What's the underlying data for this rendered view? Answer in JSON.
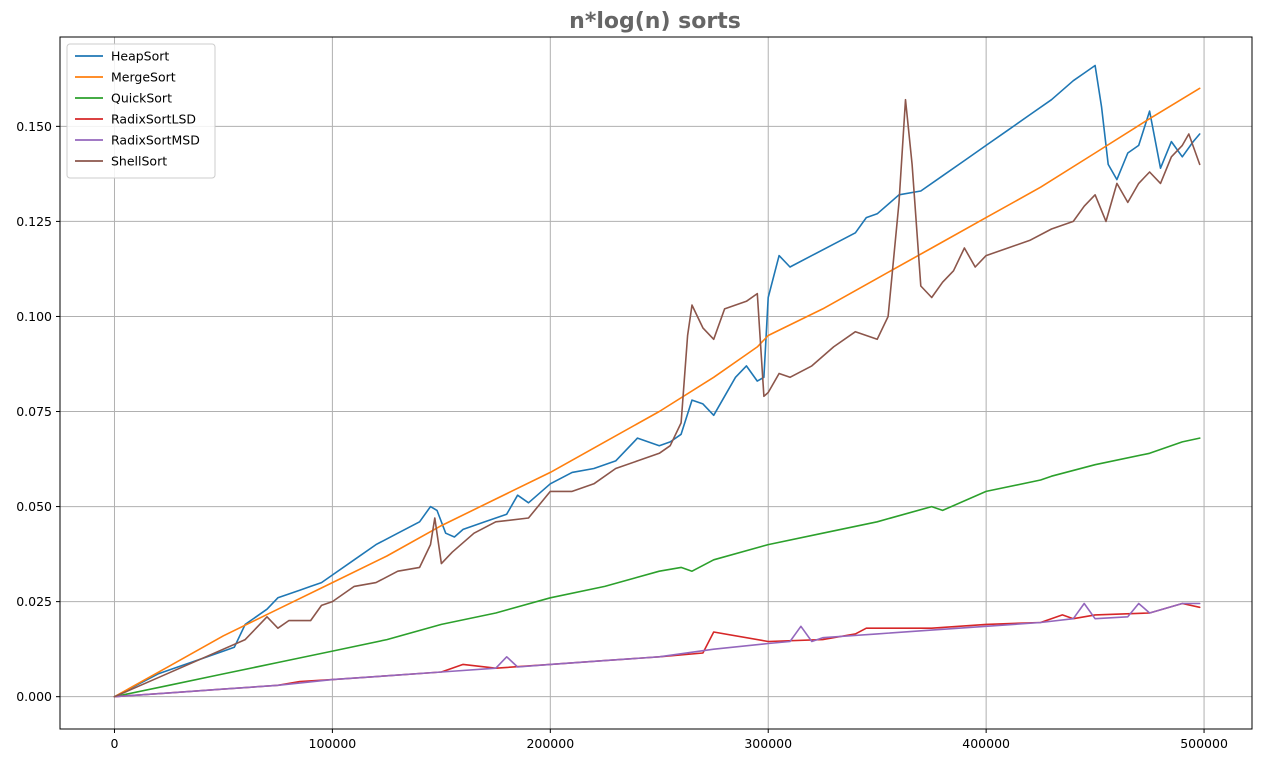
{
  "chart_data": {
    "type": "line",
    "title": "n*log(n) sorts",
    "xlabel": "",
    "ylabel": "",
    "xlim": [
      -25000,
      522000
    ],
    "ylim": [
      -0.0085,
      0.1735
    ],
    "xticks": [
      0,
      100000,
      200000,
      300000,
      400000,
      500000
    ],
    "xtick_labels": [
      "0",
      "100000",
      "200000",
      "300000",
      "400000",
      "500000"
    ],
    "yticks": [
      0.0,
      0.025,
      0.05,
      0.075,
      0.1,
      0.125,
      0.15
    ],
    "ytick_labels": [
      "0.000",
      "0.025",
      "0.050",
      "0.075",
      "0.100",
      "0.125",
      "0.150"
    ],
    "grid": true,
    "legend_position": "upper left",
    "series": [
      {
        "name": "HeapSort",
        "color": "#1f77b4",
        "x": [
          0,
          10000,
          20000,
          30000,
          40000,
          50000,
          55000,
          60000,
          65000,
          70000,
          75000,
          80000,
          85000,
          90000,
          95000,
          100000,
          110000,
          120000,
          130000,
          140000,
          145000,
          148000,
          152000,
          156000,
          160000,
          170000,
          180000,
          185000,
          190000,
          200000,
          210000,
          220000,
          230000,
          240000,
          250000,
          255000,
          260000,
          265000,
          270000,
          275000,
          280000,
          285000,
          290000,
          295000,
          298000,
          300000,
          305000,
          310000,
          320000,
          330000,
          340000,
          345000,
          350000,
          360000,
          370000,
          380000,
          390000,
          400000,
          410000,
          420000,
          430000,
          440000,
          445000,
          450000,
          453000,
          456000,
          460000,
          465000,
          470000,
          475000,
          480000,
          485000,
          490000,
          495000,
          498000
        ],
        "values": [
          0.0,
          0.003,
          0.006,
          0.008,
          0.01,
          0.012,
          0.013,
          0.019,
          0.021,
          0.023,
          0.026,
          0.027,
          0.028,
          0.029,
          0.03,
          0.032,
          0.036,
          0.04,
          0.043,
          0.046,
          0.05,
          0.049,
          0.043,
          0.042,
          0.044,
          0.046,
          0.048,
          0.053,
          0.051,
          0.056,
          0.059,
          0.06,
          0.062,
          0.068,
          0.066,
          0.067,
          0.069,
          0.078,
          0.077,
          0.074,
          0.079,
          0.084,
          0.087,
          0.083,
          0.084,
          0.105,
          0.116,
          0.113,
          0.116,
          0.119,
          0.122,
          0.126,
          0.127,
          0.132,
          0.133,
          0.137,
          0.141,
          0.145,
          0.149,
          0.153,
          0.157,
          0.162,
          0.164,
          0.166,
          0.155,
          0.14,
          0.136,
          0.143,
          0.145,
          0.154,
          0.139,
          0.146,
          0.142,
          0.146,
          0.148
        ]
      },
      {
        "name": "MergeSort",
        "color": "#ff7f0e",
        "x": [
          0,
          25000,
          50000,
          75000,
          100000,
          125000,
          150000,
          175000,
          200000,
          225000,
          250000,
          275000,
          290000,
          295000,
          300000,
          325000,
          350000,
          375000,
          400000,
          425000,
          450000,
          475000,
          498000
        ],
        "values": [
          0.0,
          0.008,
          0.016,
          0.023,
          0.03,
          0.037,
          0.045,
          0.052,
          0.059,
          0.067,
          0.075,
          0.084,
          0.09,
          0.092,
          0.095,
          0.102,
          0.11,
          0.118,
          0.126,
          0.134,
          0.143,
          0.152,
          0.16
        ]
      },
      {
        "name": "QuickSort",
        "color": "#2ca02c",
        "x": [
          0,
          25000,
          50000,
          75000,
          100000,
          125000,
          150000,
          175000,
          200000,
          225000,
          250000,
          260000,
          265000,
          275000,
          300000,
          325000,
          350000,
          375000,
          380000,
          400000,
          425000,
          430000,
          450000,
          475000,
          490000,
          498000
        ],
        "values": [
          0.0,
          0.003,
          0.006,
          0.009,
          0.012,
          0.015,
          0.019,
          0.022,
          0.026,
          0.029,
          0.033,
          0.034,
          0.033,
          0.036,
          0.04,
          0.043,
          0.046,
          0.05,
          0.049,
          0.054,
          0.057,
          0.058,
          0.061,
          0.064,
          0.067,
          0.068
        ]
      },
      {
        "name": "RadixSortLSD",
        "color": "#d62728",
        "x": [
          0,
          25000,
          50000,
          75000,
          85000,
          100000,
          125000,
          150000,
          160000,
          175000,
          200000,
          225000,
          250000,
          270000,
          275000,
          300000,
          325000,
          340000,
          345000,
          375000,
          400000,
          425000,
          435000,
          440000,
          450000,
          475000,
          490000,
          498000
        ],
        "values": [
          0.0,
          0.001,
          0.002,
          0.003,
          0.004,
          0.0045,
          0.0055,
          0.0065,
          0.0085,
          0.0075,
          0.0085,
          0.0095,
          0.0105,
          0.0115,
          0.017,
          0.0145,
          0.015,
          0.0165,
          0.018,
          0.018,
          0.019,
          0.0195,
          0.0215,
          0.0205,
          0.0215,
          0.022,
          0.0245,
          0.0235
        ]
      },
      {
        "name": "RadixSortMSD",
        "color": "#9467bd",
        "x": [
          0,
          25000,
          50000,
          75000,
          100000,
          125000,
          150000,
          175000,
          180000,
          185000,
          200000,
          225000,
          250000,
          275000,
          300000,
          310000,
          315000,
          320000,
          325000,
          350000,
          375000,
          400000,
          425000,
          440000,
          445000,
          450000,
          465000,
          470000,
          475000,
          490000,
          498000
        ],
        "values": [
          0.0,
          0.001,
          0.002,
          0.003,
          0.0045,
          0.0055,
          0.0065,
          0.0075,
          0.0105,
          0.0078,
          0.0085,
          0.0095,
          0.0105,
          0.0125,
          0.014,
          0.0145,
          0.0185,
          0.0145,
          0.0155,
          0.0165,
          0.0175,
          0.0185,
          0.0195,
          0.0205,
          0.0245,
          0.0205,
          0.021,
          0.0245,
          0.022,
          0.0245,
          0.0245
        ]
      },
      {
        "name": "ShellSort",
        "color": "#8c564b",
        "x": [
          0,
          20000,
          40000,
          60000,
          65000,
          70000,
          75000,
          80000,
          90000,
          95000,
          100000,
          110000,
          120000,
          130000,
          140000,
          145000,
          147000,
          150000,
          155000,
          165000,
          175000,
          190000,
          200000,
          210000,
          220000,
          230000,
          240000,
          250000,
          255000,
          260000,
          263000,
          265000,
          270000,
          275000,
          280000,
          290000,
          295000,
          298000,
          300000,
          305000,
          310000,
          320000,
          330000,
          340000,
          350000,
          355000,
          360000,
          363000,
          366000,
          370000,
          375000,
          380000,
          385000,
          390000,
          395000,
          400000,
          410000,
          420000,
          430000,
          440000,
          445000,
          450000,
          455000,
          460000,
          465000,
          470000,
          475000,
          480000,
          485000,
          490000,
          493000,
          498000
        ],
        "values": [
          0.0,
          0.005,
          0.01,
          0.015,
          0.018,
          0.021,
          0.018,
          0.02,
          0.02,
          0.024,
          0.025,
          0.029,
          0.03,
          0.033,
          0.034,
          0.04,
          0.047,
          0.035,
          0.038,
          0.043,
          0.046,
          0.047,
          0.054,
          0.054,
          0.056,
          0.06,
          0.062,
          0.064,
          0.066,
          0.072,
          0.095,
          0.103,
          0.097,
          0.094,
          0.102,
          0.104,
          0.106,
          0.079,
          0.08,
          0.085,
          0.084,
          0.087,
          0.092,
          0.096,
          0.094,
          0.1,
          0.13,
          0.157,
          0.14,
          0.108,
          0.105,
          0.109,
          0.112,
          0.118,
          0.113,
          0.116,
          0.118,
          0.12,
          0.123,
          0.125,
          0.129,
          0.132,
          0.125,
          0.135,
          0.13,
          0.135,
          0.138,
          0.135,
          0.142,
          0.145,
          0.148,
          0.14
        ]
      }
    ]
  }
}
